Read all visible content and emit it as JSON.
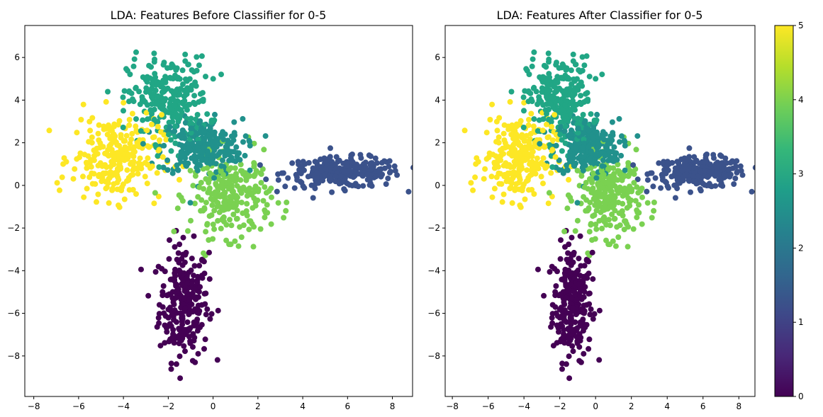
{
  "chart_data": [
    {
      "type": "scatter",
      "title": "LDA: Features Before Classifier for 0-5",
      "xlabel": "",
      "ylabel": "",
      "xlim": [
        -8.4,
        8.9
      ],
      "ylim": [
        -9.9,
        7.5
      ],
      "xticks": [
        -8,
        -6,
        -4,
        -2,
        0,
        2,
        4,
        6,
        8
      ],
      "yticks": [
        -8,
        -6,
        -4,
        -2,
        0,
        2,
        4,
        6
      ],
      "xtick_labels": [
        "−8",
        "−6",
        "−4",
        "−2",
        "0",
        "2",
        "4",
        "6",
        "8"
      ],
      "ytick_labels": [
        "−8",
        "−6",
        "−4",
        "−2",
        "0",
        "2",
        "4",
        "6"
      ],
      "grid": false,
      "colormap": "viridis",
      "clusters": [
        {
          "class": 0,
          "center": [
            -1.3,
            -5.5
          ],
          "spread": [
            0.55,
            1.35
          ],
          "color": "#440154"
        },
        {
          "class": 1,
          "center": [
            5.8,
            0.6
          ],
          "spread": [
            1.3,
            0.35
          ],
          "color": "#3b528b"
        },
        {
          "class": 2,
          "center": [
            -0.5,
            1.8
          ],
          "spread": [
            0.9,
            0.65
          ],
          "color": "#21918c"
        },
        {
          "class": 3,
          "center": [
            -2.0,
            4.0
          ],
          "spread": [
            0.9,
            1.0
          ],
          "color": "#21a685"
        },
        {
          "class": 4,
          "center": [
            0.8,
            -0.5
          ],
          "spread": [
            0.9,
            0.95
          ],
          "color": "#7ad151"
        },
        {
          "class": 5,
          "center": [
            -4.3,
            1.3
          ],
          "spread": [
            1.0,
            1.0
          ],
          "color": "#fde725"
        }
      ]
    },
    {
      "type": "scatter",
      "title": "LDA: Features After Classifier for 0-5",
      "xlabel": "",
      "ylabel": "",
      "xlim": [
        -8.4,
        8.9
      ],
      "ylim": [
        -9.9,
        7.5
      ],
      "xticks": [
        -8,
        -6,
        -4,
        -2,
        0,
        2,
        4,
        6,
        8
      ],
      "yticks": [
        -8,
        -6,
        -4,
        -2,
        0,
        2,
        4,
        6
      ],
      "xtick_labels": [
        "−8",
        "−6",
        "−4",
        "−2",
        "0",
        "2",
        "4",
        "6",
        "8"
      ],
      "ytick_labels": [
        "−8",
        "−6",
        "−4",
        "−2",
        "0",
        "2",
        "4",
        "6"
      ],
      "grid": false,
      "colormap": "viridis",
      "clusters": [
        {
          "class": 0,
          "center": [
            -1.3,
            -5.5
          ],
          "spread": [
            0.55,
            1.35
          ],
          "color": "#440154"
        },
        {
          "class": 1,
          "center": [
            5.8,
            0.6
          ],
          "spread": [
            1.3,
            0.35
          ],
          "color": "#3b528b"
        },
        {
          "class": 2,
          "center": [
            -0.5,
            1.8
          ],
          "spread": [
            0.9,
            0.65
          ],
          "color": "#21918c"
        },
        {
          "class": 3,
          "center": [
            -2.0,
            4.0
          ],
          "spread": [
            0.9,
            1.0
          ],
          "color": "#21a685"
        },
        {
          "class": 4,
          "center": [
            0.8,
            -0.5
          ],
          "spread": [
            0.9,
            0.95
          ],
          "color": "#7ad151"
        },
        {
          "class": 5,
          "center": [
            -4.3,
            1.3
          ],
          "spread": [
            1.0,
            1.0
          ],
          "color": "#fde725"
        }
      ]
    }
  ],
  "colorbar": {
    "range": [
      0,
      5
    ],
    "ticks": [
      0,
      1,
      2,
      3,
      4,
      5
    ],
    "tick_labels": [
      "0",
      "1",
      "2",
      "3",
      "4",
      "5"
    ],
    "colors": [
      "#440154",
      "#482878",
      "#3e4989",
      "#31688e",
      "#26828e",
      "#1f9e89",
      "#35b779",
      "#6ece58",
      "#b5de2b",
      "#fde725"
    ]
  }
}
